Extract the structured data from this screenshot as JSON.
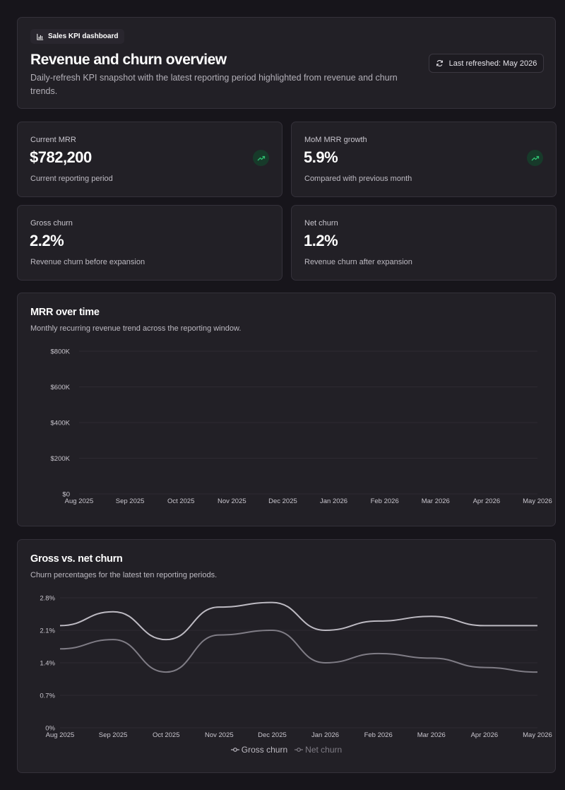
{
  "header": {
    "badge_label": "Sales KPI dashboard",
    "title": "Revenue and churn overview",
    "subtitle": "Daily-refresh KPI snapshot with the latest reporting period highlighted from revenue and churn trends.",
    "refresh_label": "Last refreshed: May 2026"
  },
  "kpis": [
    {
      "label": "Current MRR",
      "value": "$782,200",
      "note": "Current reporting period",
      "icon": "trending-up-icon"
    },
    {
      "label": "MoM MRR growth",
      "value": "5.9%",
      "note": "Compared with previous month",
      "icon": "trending-up-icon"
    },
    {
      "label": "Gross churn",
      "value": "2.2%",
      "note": "Revenue churn before expansion"
    },
    {
      "label": "Net churn",
      "value": "1.2%",
      "note": "Revenue churn after expansion"
    }
  ],
  "colors": {
    "background": "#17151b",
    "card": "#222026",
    "trend_green": "#2fbf71",
    "gross_line": "#bdbac2",
    "net_line": "#7f7c85"
  },
  "mrr_chart": {
    "title": "MRR over time",
    "subtitle": "Monthly recurring revenue trend across the reporting window."
  },
  "churn_chart": {
    "title": "Gross vs. net churn",
    "subtitle": "Churn percentages for the latest ten reporting periods."
  },
  "chart_data": [
    {
      "type": "line",
      "title": "MRR over time",
      "x": [
        "Aug 2025",
        "Sep 2025",
        "Oct 2025",
        "Nov 2025",
        "Dec 2025",
        "Jan 2026",
        "Feb 2026",
        "Mar 2026",
        "Apr 2026",
        "May 2026"
      ],
      "y_ticks": [
        "$0",
        "$200K",
        "$400K",
        "$600K",
        "$800K"
      ],
      "ylim": [
        0,
        800000
      ],
      "grid": true,
      "series": []
    },
    {
      "type": "line",
      "title": "Gross vs. net churn",
      "x": [
        "Aug 2025",
        "Sep 2025",
        "Oct 2025",
        "Nov 2025",
        "Dec 2025",
        "Jan 2026",
        "Feb 2026",
        "Mar 2026",
        "Apr 2026",
        "May 2026"
      ],
      "y_ticks": [
        "0%",
        "0.7%",
        "1.4%",
        "2.1%",
        "2.8%"
      ],
      "ylim": [
        0,
        2.8
      ],
      "grid": true,
      "legend_position": "bottom",
      "series": [
        {
          "name": "Gross churn",
          "values": [
            2.2,
            2.5,
            1.9,
            2.6,
            2.7,
            2.1,
            2.3,
            2.4,
            2.2,
            2.2
          ]
        },
        {
          "name": "Net churn",
          "values": [
            1.7,
            1.9,
            1.2,
            2.0,
            2.1,
            1.4,
            1.6,
            1.5,
            1.3,
            1.2
          ]
        }
      ]
    }
  ]
}
